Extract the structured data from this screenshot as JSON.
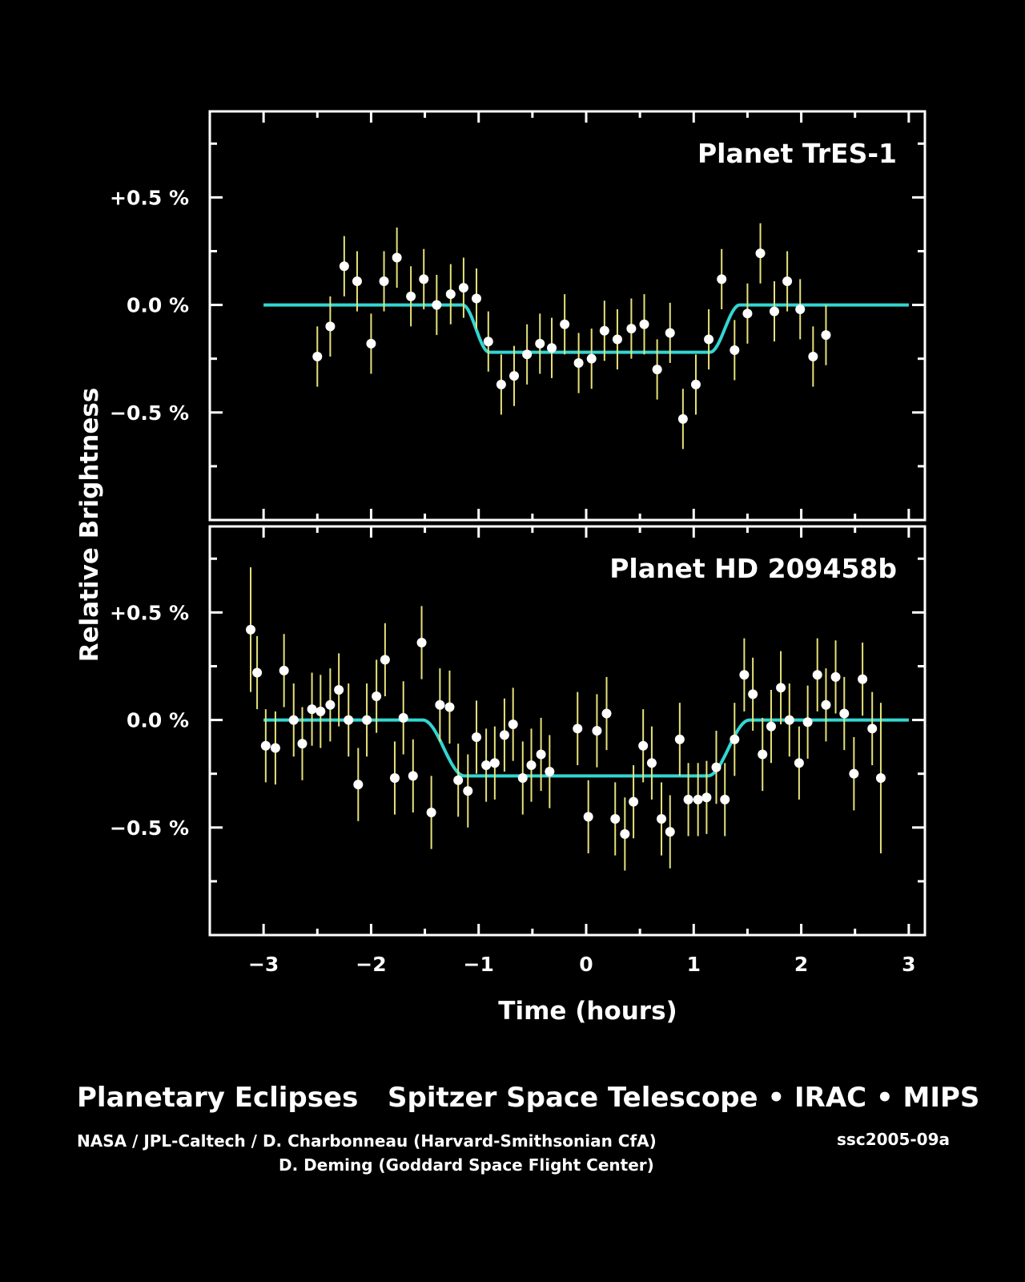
{
  "colors": {
    "background": "#000000",
    "axes": "#ffffff",
    "model_curve": "#33d6d2",
    "points": "#ffffff",
    "error_bars": "#e6e27a"
  },
  "chart_data": {
    "type": "scatter",
    "xlabel": "Time (hours)",
    "ylabel": "Relative Brightness",
    "xlim": [
      -3.5,
      3.15
    ],
    "x_ticks": [
      -3,
      -2,
      -1,
      0,
      1,
      2,
      3
    ],
    "x_tick_labels": [
      "−3",
      "−2",
      "−1",
      "0",
      "1",
      "2",
      "3"
    ],
    "grid": false,
    "panels": [
      {
        "title": "Planet TrES-1",
        "ylim": [
          -1.0,
          0.9
        ],
        "y_ticks": [
          0.5,
          0.0,
          -0.5
        ],
        "y_tick_labels": [
          "+0.5 %",
          "0.0 %",
          "−0.5 %"
        ],
        "model": {
          "depth": -0.22,
          "ingress_start": -1.15,
          "ingress_end": -0.9,
          "egress_start": 1.15,
          "egress_end": 1.43
        },
        "points": [
          [
            -2.5,
            -0.24,
            0.14
          ],
          [
            -2.38,
            -0.1,
            0.14
          ],
          [
            -2.25,
            0.18,
            0.14
          ],
          [
            -2.13,
            0.11,
            0.14
          ],
          [
            -2.0,
            -0.18,
            0.14
          ],
          [
            -1.88,
            0.11,
            0.14
          ],
          [
            -1.76,
            0.22,
            0.14
          ],
          [
            -1.63,
            0.04,
            0.14
          ],
          [
            -1.51,
            0.12,
            0.14
          ],
          [
            -1.39,
            0.0,
            0.14
          ],
          [
            -1.26,
            0.05,
            0.14
          ],
          [
            -1.14,
            0.08,
            0.14
          ],
          [
            -1.02,
            0.03,
            0.14
          ],
          [
            -0.91,
            -0.17,
            0.14
          ],
          [
            -0.79,
            -0.37,
            0.14
          ],
          [
            -0.67,
            -0.33,
            0.14
          ],
          [
            -0.55,
            -0.23,
            0.14
          ],
          [
            -0.43,
            -0.18,
            0.14
          ],
          [
            -0.32,
            -0.2,
            0.14
          ],
          [
            -0.2,
            -0.09,
            0.14
          ],
          [
            -0.07,
            -0.27,
            0.14
          ],
          [
            0.05,
            -0.25,
            0.14
          ],
          [
            0.17,
            -0.12,
            0.14
          ],
          [
            0.29,
            -0.16,
            0.14
          ],
          [
            0.42,
            -0.11,
            0.14
          ],
          [
            0.54,
            -0.09,
            0.14
          ],
          [
            0.66,
            -0.3,
            0.14
          ],
          [
            0.78,
            -0.13,
            0.14
          ],
          [
            0.9,
            -0.53,
            0.14
          ],
          [
            1.02,
            -0.37,
            0.14
          ],
          [
            1.14,
            -0.16,
            0.14
          ],
          [
            1.26,
            0.12,
            0.14
          ],
          [
            1.38,
            -0.21,
            0.14
          ],
          [
            1.5,
            -0.04,
            0.14
          ],
          [
            1.62,
            0.24,
            0.14
          ],
          [
            1.75,
            -0.03,
            0.14
          ],
          [
            1.87,
            0.11,
            0.14
          ],
          [
            1.99,
            -0.02,
            0.14
          ],
          [
            2.11,
            -0.24,
            0.14
          ],
          [
            2.23,
            -0.14,
            0.14
          ]
        ]
      },
      {
        "title": "Planet HD 209458b",
        "ylim": [
          -1.0,
          0.9
        ],
        "y_ticks": [
          0.5,
          0.0,
          -0.5
        ],
        "y_tick_labels": [
          "+0.5 %",
          "0.0 %",
          "−0.5 %"
        ],
        "model": {
          "depth": -0.26,
          "ingress_start": -1.52,
          "ingress_end": -1.13,
          "egress_start": 1.13,
          "egress_end": 1.52
        },
        "points": [
          [
            -3.12,
            0.42,
            0.29
          ],
          [
            -3.06,
            0.22,
            0.17
          ],
          [
            -2.98,
            -0.12,
            0.17
          ],
          [
            -2.89,
            -0.13,
            0.17
          ],
          [
            -2.81,
            0.23,
            0.17
          ],
          [
            -2.72,
            0.0,
            0.17
          ],
          [
            -2.64,
            -0.11,
            0.17
          ],
          [
            -2.55,
            0.05,
            0.17
          ],
          [
            -2.47,
            0.04,
            0.17
          ],
          [
            -2.38,
            0.07,
            0.17
          ],
          [
            -2.3,
            0.14,
            0.17
          ],
          [
            -2.21,
            0.0,
            0.17
          ],
          [
            -2.12,
            -0.3,
            0.17
          ],
          [
            -2.04,
            0.0,
            0.17
          ],
          [
            -1.95,
            0.11,
            0.17
          ],
          [
            -1.87,
            0.28,
            0.17
          ],
          [
            -1.78,
            -0.27,
            0.17
          ],
          [
            -1.7,
            0.01,
            0.17
          ],
          [
            -1.61,
            -0.26,
            0.17
          ],
          [
            -1.53,
            0.36,
            0.17
          ],
          [
            -1.44,
            -0.43,
            0.17
          ],
          [
            -1.36,
            0.07,
            0.17
          ],
          [
            -1.27,
            0.06,
            0.17
          ],
          [
            -1.19,
            -0.28,
            0.17
          ],
          [
            -1.1,
            -0.33,
            0.17
          ],
          [
            -1.02,
            -0.08,
            0.17
          ],
          [
            -0.93,
            -0.21,
            0.17
          ],
          [
            -0.85,
            -0.2,
            0.17
          ],
          [
            -0.76,
            -0.07,
            0.17
          ],
          [
            -0.68,
            -0.02,
            0.17
          ],
          [
            -0.59,
            -0.27,
            0.17
          ],
          [
            -0.51,
            -0.21,
            0.17
          ],
          [
            -0.42,
            -0.16,
            0.17
          ],
          [
            -0.34,
            -0.24,
            0.17
          ],
          [
            -0.08,
            -0.04,
            0.17
          ],
          [
            0.02,
            -0.45,
            0.17
          ],
          [
            0.1,
            -0.05,
            0.17
          ],
          [
            0.19,
            0.03,
            0.17
          ],
          [
            0.27,
            -0.46,
            0.17
          ],
          [
            0.36,
            -0.53,
            0.17
          ],
          [
            0.44,
            -0.38,
            0.17
          ],
          [
            0.53,
            -0.12,
            0.17
          ],
          [
            0.61,
            -0.2,
            0.17
          ],
          [
            0.7,
            -0.46,
            0.17
          ],
          [
            0.78,
            -0.52,
            0.17
          ],
          [
            0.87,
            -0.09,
            0.17
          ],
          [
            0.95,
            -0.37,
            0.17
          ],
          [
            1.04,
            -0.37,
            0.17
          ],
          [
            1.12,
            -0.36,
            0.17
          ],
          [
            1.21,
            -0.22,
            0.17
          ],
          [
            1.29,
            -0.37,
            0.17
          ],
          [
            1.38,
            -0.09,
            0.17
          ],
          [
            1.47,
            0.21,
            0.17
          ],
          [
            1.55,
            0.12,
            0.17
          ],
          [
            1.64,
            -0.16,
            0.17
          ],
          [
            1.72,
            -0.03,
            0.17
          ],
          [
            1.81,
            0.15,
            0.17
          ],
          [
            1.89,
            0.0,
            0.17
          ],
          [
            1.98,
            -0.2,
            0.17
          ],
          [
            2.06,
            -0.01,
            0.17
          ],
          [
            2.15,
            0.21,
            0.17
          ],
          [
            2.23,
            0.07,
            0.17
          ],
          [
            2.32,
            0.2,
            0.17
          ],
          [
            2.4,
            0.03,
            0.17
          ],
          [
            2.49,
            -0.25,
            0.17
          ],
          [
            2.57,
            0.19,
            0.17
          ],
          [
            2.66,
            -0.04,
            0.17
          ],
          [
            2.74,
            -0.27,
            0.35
          ]
        ]
      }
    ]
  },
  "captions": {
    "title_left": "Planetary Eclipses",
    "title_right": "Spitzer Space Telescope • IRAC • MIPS",
    "credit_line1": "NASA / JPL-Caltech / D. Charbonneau (Harvard-Smithsonian CfA)",
    "credit_line2": "D. Deming (Goddard Space Flight Center)",
    "image_id": "ssc2005-09a"
  }
}
